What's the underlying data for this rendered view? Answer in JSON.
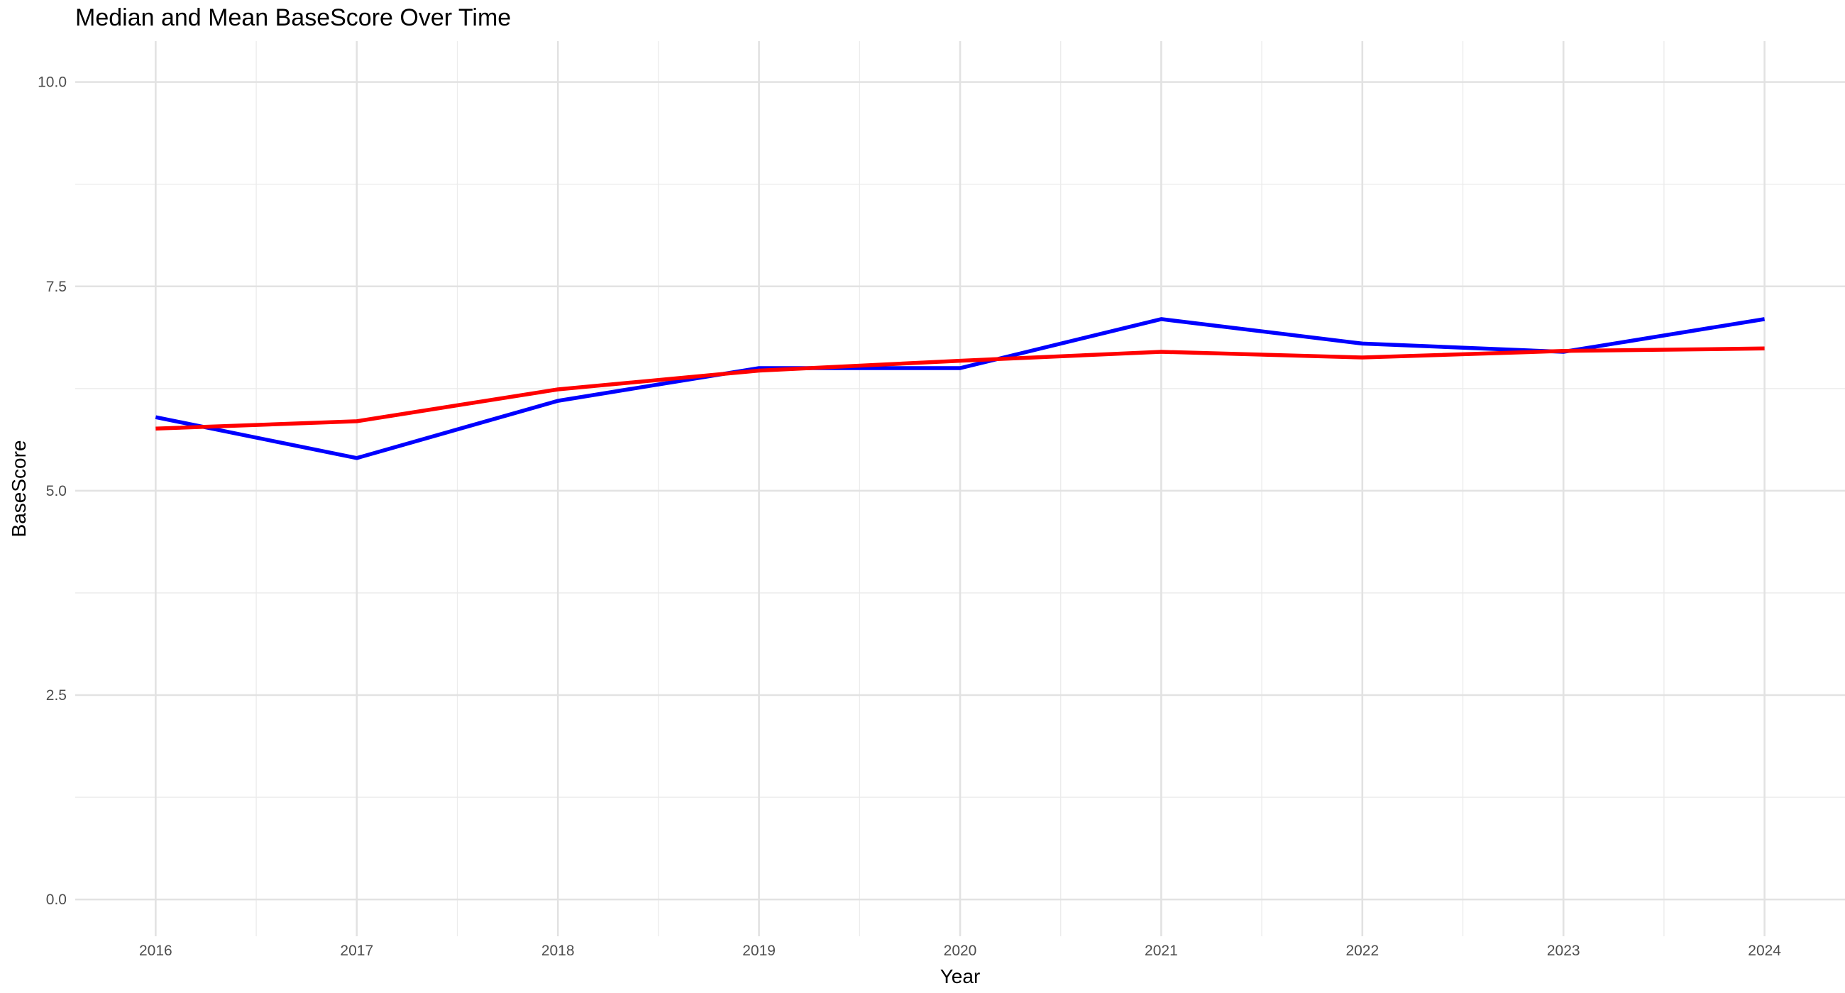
{
  "chart_data": {
    "type": "line",
    "title": "Median and Mean BaseScore Over Time",
    "xlabel": "Year",
    "ylabel": "BaseScore",
    "x": [
      2016,
      2017,
      2018,
      2019,
      2020,
      2021,
      2022,
      2023,
      2024
    ],
    "xlim": [
      2015.6,
      2024.4
    ],
    "ylim": [
      -0.45,
      10.5
    ],
    "x_ticks": [
      "2016",
      "2017",
      "2018",
      "2019",
      "2020",
      "2021",
      "2022",
      "2023",
      "2024"
    ],
    "y_ticks": [
      "0.0",
      "2.5",
      "5.0",
      "7.5",
      "10.0"
    ],
    "grid": true,
    "legend": "none",
    "series": [
      {
        "color": "#0000ff",
        "values": [
          5.9,
          5.4,
          6.1,
          6.5,
          6.5,
          7.1,
          6.8,
          6.7,
          7.1
        ]
      },
      {
        "color": "#ff0000",
        "values": [
          5.76,
          5.85,
          6.24,
          6.47,
          6.59,
          6.7,
          6.63,
          6.71,
          6.74
        ]
      }
    ]
  }
}
